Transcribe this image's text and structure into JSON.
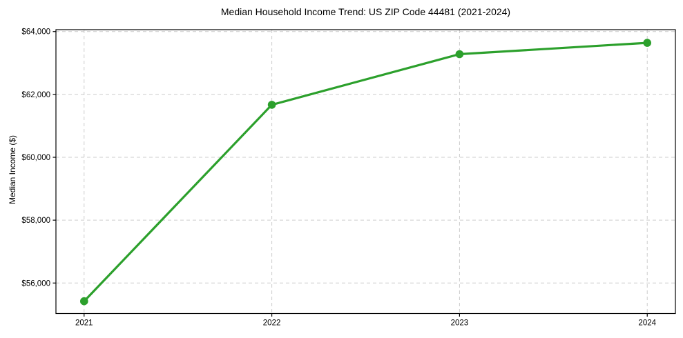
{
  "chart_data": {
    "type": "line",
    "title": "Median Household Income Trend: US ZIP Code 44481 (2021-2024)",
    "xlabel": "",
    "ylabel": "Median Income ($)",
    "x": [
      2021,
      2022,
      2023,
      2024
    ],
    "values": [
      55420,
      61670,
      63280,
      63640
    ],
    "xticks": {
      "values": [
        2021,
        2022,
        2023,
        2024
      ],
      "labels": [
        "2021",
        "2022",
        "2023",
        "2024"
      ]
    },
    "yticks": {
      "values": [
        56000,
        58000,
        60000,
        62000,
        64000
      ],
      "labels": [
        "$56,000",
        "$58,000",
        "$60,000",
        "$62,000",
        "$64,000"
      ]
    },
    "xlim": [
      2020.85,
      2024.15
    ],
    "ylim": [
      55030,
      64060
    ],
    "grid": true,
    "grid_style": "dashed",
    "legend": "none",
    "marker": "circle",
    "colors": {
      "line": "#2ca02c",
      "marker": "#2ca02c",
      "grid": "#cccccc",
      "spine": "#000000",
      "text": "#000000",
      "background": "#ffffff"
    }
  }
}
